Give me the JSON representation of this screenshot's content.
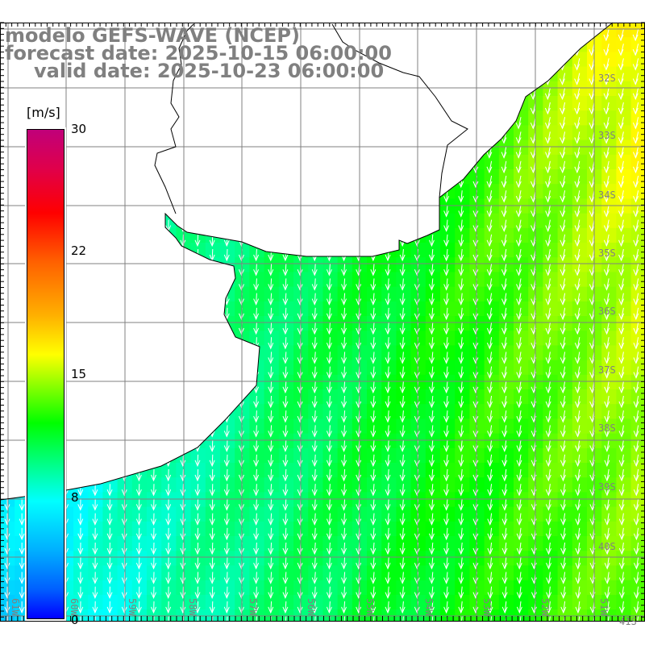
{
  "title": {
    "model": "modelo GEFS-WAVE (NCEP)",
    "forecast": "forecast date: 2025-10-15 06:00:00",
    "valid": "valid date: 2025-10-23 06:00:00"
  },
  "colorbar": {
    "unit": "[m/s]",
    "labels": [
      "30",
      "22",
      "15",
      "8",
      "0"
    ],
    "min": 0,
    "max": 30
  },
  "axes": {
    "longitudes": [
      "61W",
      "60W",
      "59W",
      "58W",
      "57W",
      "56W",
      "55W",
      "54W",
      "53W",
      "52W",
      "51W"
    ],
    "latitudes": [
      "32S",
      "33S",
      "34S",
      "35S",
      "36S",
      "37S",
      "38S",
      "39S",
      "40S",
      "41S"
    ]
  },
  "colors": {
    "title": "#808080",
    "grid": "#808080",
    "arrow": "#ffffff",
    "coast": "#000000"
  }
}
